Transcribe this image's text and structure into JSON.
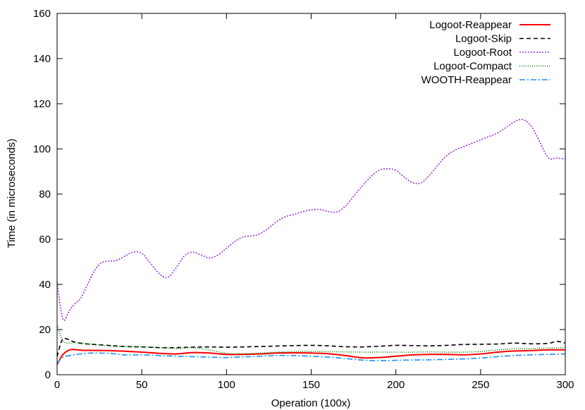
{
  "chart_data": {
    "type": "line",
    "title": "",
    "xlabel": "Operation (100x)",
    "ylabel": "Time (in microseconds)",
    "xlim": [
      0,
      300
    ],
    "ylim": [
      0,
      160
    ],
    "xticks": [
      0,
      50,
      100,
      150,
      200,
      250,
      300
    ],
    "yticks": [
      0,
      20,
      40,
      60,
      80,
      100,
      120,
      140,
      160
    ],
    "grid": false,
    "legend_position": "top-right",
    "series": [
      {
        "name": "Logoot-Reappear",
        "color": "#ff0000",
        "dash": "solid",
        "x": [
          0,
          3,
          6,
          9,
          12,
          15,
          20,
          30,
          40,
          50,
          60,
          70,
          80,
          90,
          100,
          110,
          120,
          130,
          140,
          150,
          160,
          170,
          180,
          190,
          200,
          210,
          220,
          230,
          240,
          250,
          260,
          270,
          280,
          290,
          300
        ],
        "y": [
          4.5,
          8.5,
          10.5,
          11.2,
          11.0,
          10.8,
          10.8,
          10.7,
          10.4,
          10.0,
          9.5,
          9.2,
          9.8,
          9.6,
          9.0,
          9.0,
          9.2,
          9.6,
          9.7,
          9.6,
          9.3,
          8.5,
          7.5,
          7.6,
          8.2,
          8.8,
          9.0,
          9.0,
          8.8,
          9.2,
          10.0,
          10.5,
          10.7,
          11.0,
          11.0
        ]
      },
      {
        "name": "Logoot-Skip",
        "color": "#000000",
        "dash": "6,4",
        "x": [
          0,
          3,
          6,
          10,
          15,
          20,
          30,
          40,
          50,
          60,
          70,
          80,
          90,
          100,
          110,
          120,
          130,
          140,
          150,
          160,
          170,
          180,
          190,
          200,
          210,
          220,
          230,
          240,
          250,
          260,
          270,
          280,
          290,
          295,
          300
        ],
        "y": [
          8.0,
          15.5,
          15.8,
          14.5,
          13.8,
          13.5,
          13.0,
          12.5,
          12.3,
          12.0,
          12.0,
          12.2,
          12.3,
          12.2,
          12.3,
          12.5,
          12.7,
          12.9,
          13.0,
          12.8,
          12.4,
          12.3,
          12.6,
          13.0,
          12.9,
          12.8,
          13.0,
          13.4,
          13.5,
          13.6,
          14.0,
          13.7,
          13.9,
          14.8,
          14.0
        ]
      },
      {
        "name": "Logoot-Root",
        "color": "#9a30e0",
        "dash": "2,2",
        "x": [
          0,
          2,
          4,
          7,
          10,
          14,
          18,
          22,
          26,
          30,
          35,
          40,
          45,
          50,
          55,
          60,
          65,
          70,
          75,
          80,
          85,
          90,
          95,
          100,
          105,
          110,
          115,
          120,
          125,
          130,
          135,
          140,
          145,
          150,
          155,
          160,
          165,
          170,
          175,
          180,
          185,
          190,
          195,
          200,
          205,
          210,
          215,
          220,
          225,
          230,
          235,
          240,
          245,
          250,
          255,
          260,
          265,
          270,
          275,
          280,
          285,
          290,
          295,
          300
        ],
        "y": [
          41,
          30,
          24,
          28,
          31,
          34,
          40,
          46,
          49.5,
          50.3,
          50.6,
          52.5,
          54.3,
          53.8,
          49.5,
          45.0,
          43.0,
          47.0,
          52.5,
          54.3,
          53.0,
          51.7,
          53.0,
          56.0,
          59.0,
          61.0,
          61.5,
          62.5,
          65.0,
          68.0,
          70.0,
          71.0,
          72.2,
          73.0,
          73.2,
          72.3,
          72.0,
          74.5,
          79.0,
          83.5,
          87.5,
          90.5,
          91.2,
          90.5,
          87.5,
          85.0,
          85.0,
          88.5,
          93.0,
          97.0,
          99.5,
          101.0,
          102.5,
          104.0,
          105.5,
          107.0,
          109.5,
          112.0,
          113.0,
          110.0,
          103.0,
          96.0,
          96.0,
          95.5
        ]
      },
      {
        "name": "Logoot-Compact",
        "color": "#008000",
        "dash": "1,2",
        "x": [
          0,
          2,
          4,
          7,
          10,
          15,
          20,
          30,
          40,
          50,
          60,
          70,
          80,
          90,
          100,
          110,
          120,
          130,
          140,
          150,
          160,
          170,
          180,
          190,
          200,
          210,
          220,
          230,
          240,
          250,
          260,
          270,
          280,
          290,
          300
        ],
        "y": [
          22.0,
          17.5,
          14.5,
          14.0,
          14.2,
          14.0,
          13.5,
          12.8,
          12.4,
          12.4,
          12.0,
          11.6,
          11.9,
          11.0,
          9.5,
          9.3,
          9.6,
          10.0,
          10.2,
          10.3,
          10.2,
          10.1,
          10.0,
          10.0,
          10.0,
          10.0,
          10.1,
          10.0,
          10.0,
          10.3,
          11.0,
          11.5,
          11.6,
          11.8,
          12.0
        ]
      },
      {
        "name": "WOOTH-Reappear",
        "color": "#1e90ff",
        "dash": "8,3,2,3",
        "x": [
          0,
          3,
          6,
          10,
          15,
          20,
          30,
          40,
          50,
          60,
          70,
          80,
          90,
          100,
          110,
          120,
          130,
          140,
          150,
          160,
          170,
          180,
          190,
          200,
          210,
          220,
          230,
          240,
          250,
          260,
          270,
          280,
          290,
          300
        ],
        "y": [
          5.0,
          7.5,
          8.3,
          8.8,
          9.3,
          9.6,
          9.5,
          8.8,
          8.8,
          8.5,
          8.2,
          8.0,
          7.8,
          7.6,
          7.9,
          8.2,
          8.5,
          8.5,
          8.2,
          7.8,
          7.2,
          6.5,
          6.2,
          6.4,
          6.5,
          6.6,
          6.8,
          7.0,
          7.4,
          8.0,
          8.5,
          8.8,
          9.0,
          9.2
        ]
      }
    ]
  }
}
